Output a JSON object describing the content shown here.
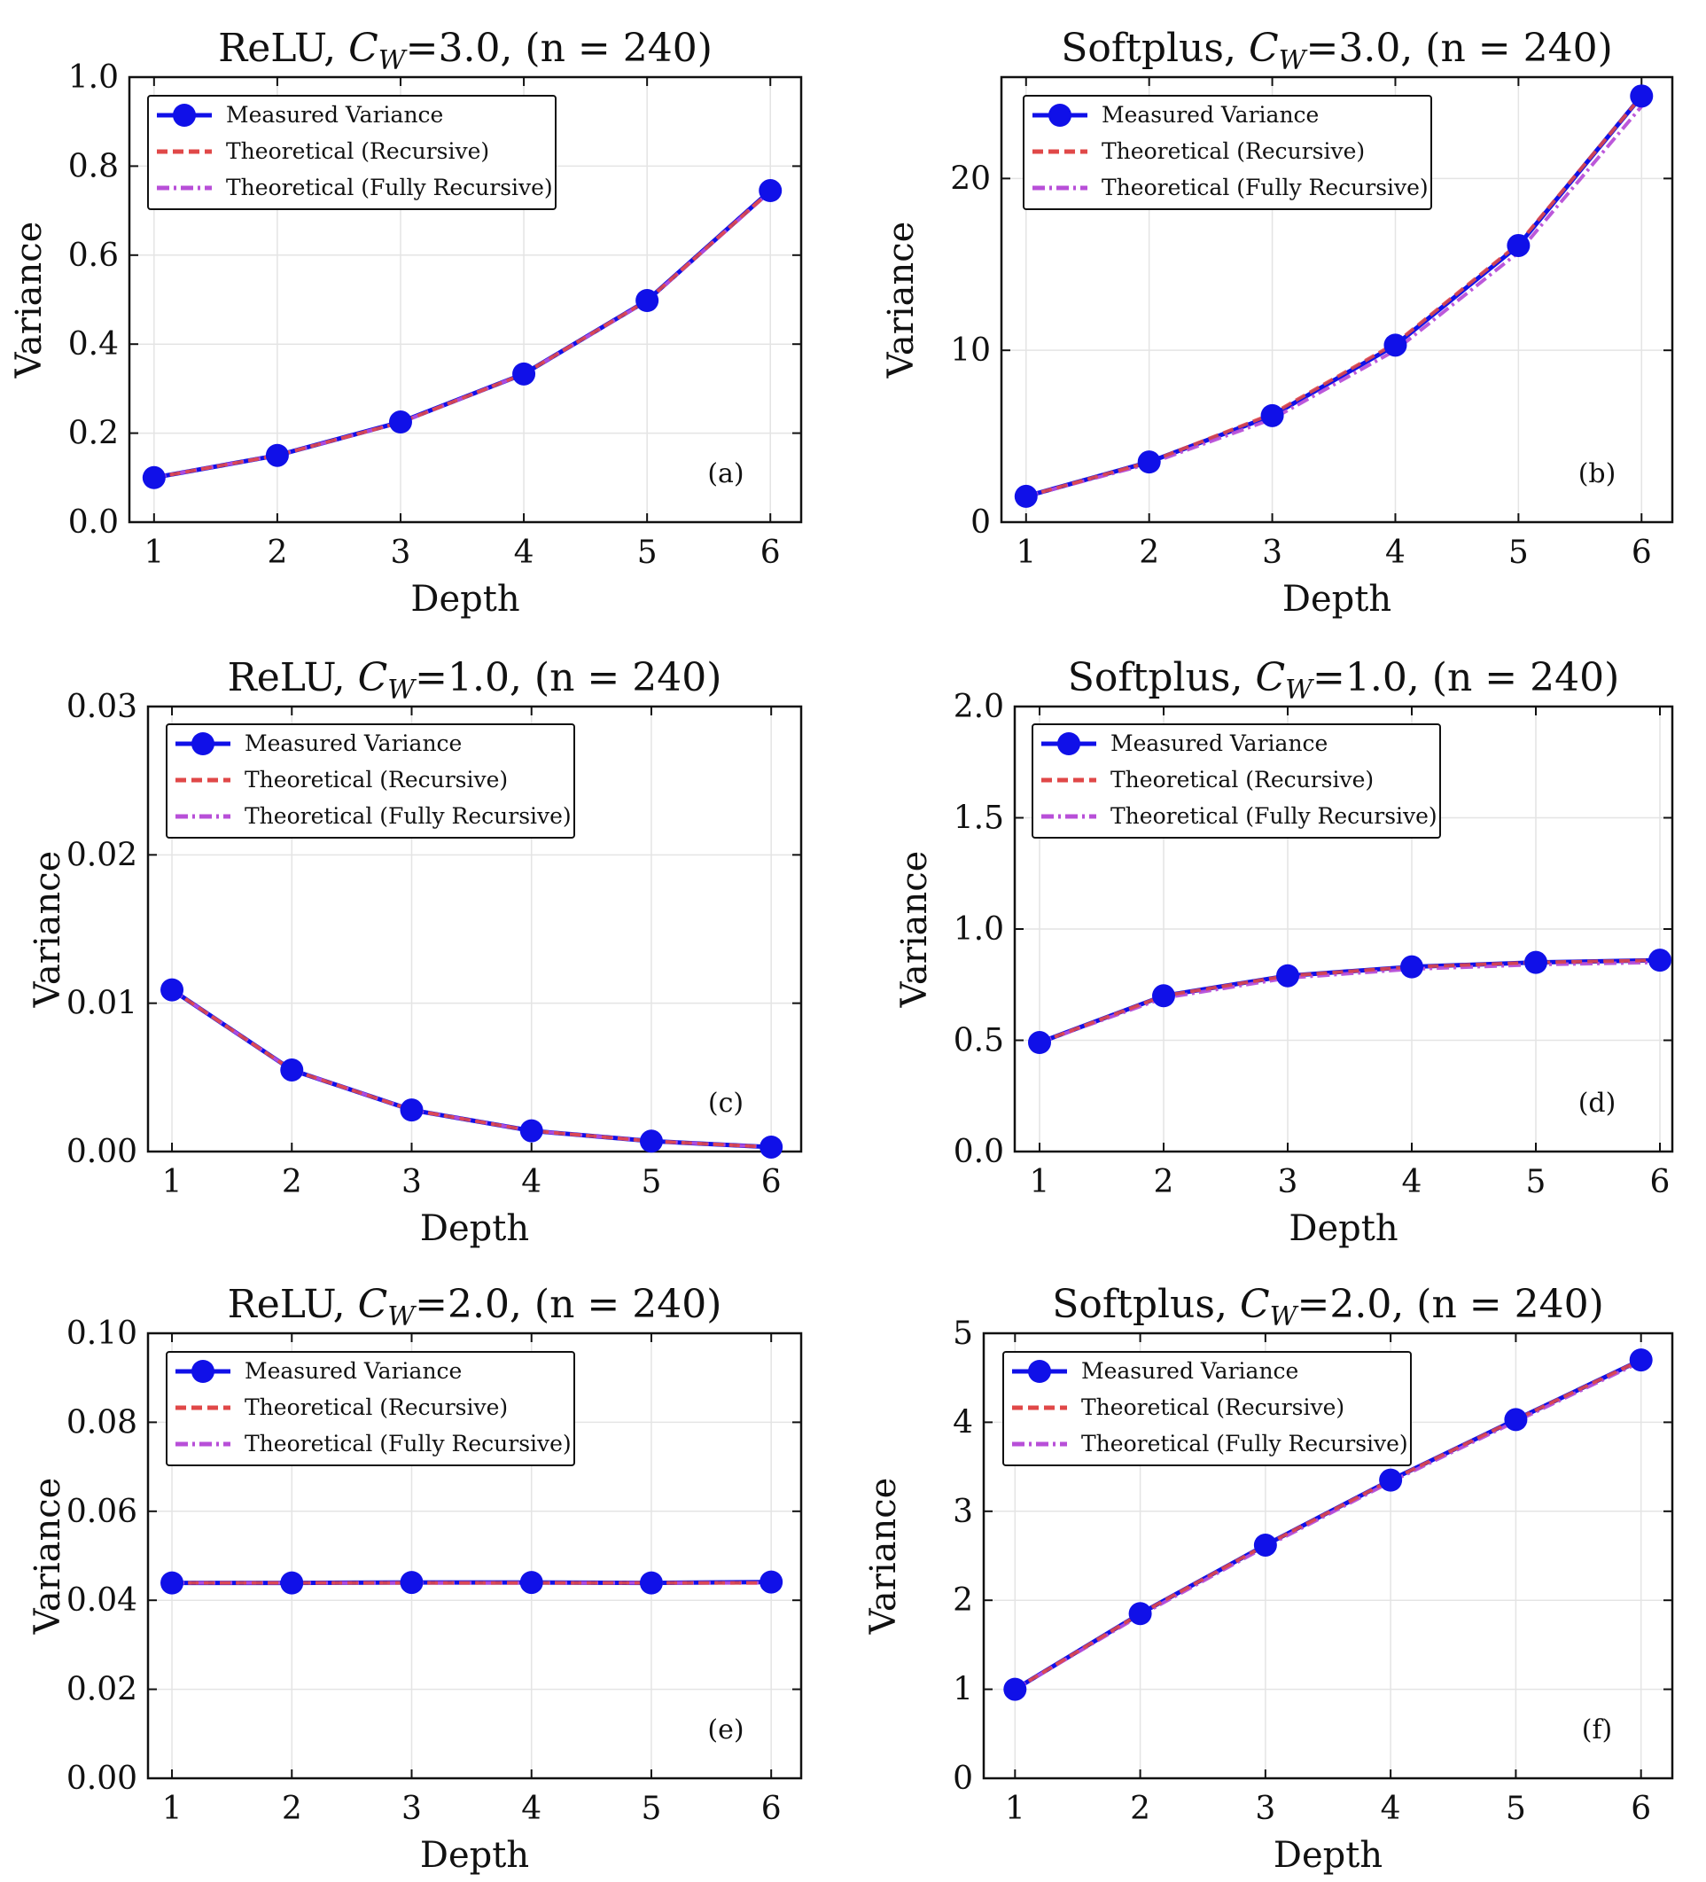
{
  "legend": {
    "measured": "Measured Variance",
    "recursive": "Theoretical (Recursive)",
    "fully": "Theoretical (Fully Recursive)"
  },
  "colors": {
    "measured": "#1010e8",
    "recursive": "#e04848",
    "fully": "#b84fd8",
    "grid": "#e4e4e4",
    "frame": "#111111"
  },
  "chart_data": [
    {
      "type": "line",
      "title": "ReLU, C_W=3.0, (n = 240)",
      "title_parts": {
        "pre": "ReLU, ",
        "sym": "C",
        "sub": "W",
        "post": "=3.0, (n = 240)"
      },
      "xlabel": "Depth",
      "ylabel": "Variance",
      "panel": "(a)",
      "x": [
        1,
        2,
        3,
        4,
        5,
        6
      ],
      "xlim": [
        0.8,
        6.25
      ],
      "ylim": [
        0,
        1.0
      ],
      "yticks": [
        "0.0",
        "0.2",
        "0.4",
        "0.6",
        "0.8",
        "1.0"
      ],
      "series": [
        {
          "name": "Measured Variance",
          "values": [
            0.1,
            0.15,
            0.225,
            0.333,
            0.498,
            0.745
          ]
        },
        {
          "name": "Theoretical (Recursive)",
          "values": [
            0.1,
            0.15,
            0.224,
            0.333,
            0.498,
            0.744
          ]
        },
        {
          "name": "Theoretical (Fully Recursive)",
          "values": [
            0.1,
            0.15,
            0.224,
            0.333,
            0.497,
            0.743
          ]
        }
      ]
    },
    {
      "type": "line",
      "title": "Softplus, C_W=3.0, (n = 240)",
      "title_parts": {
        "pre": "Softplus, ",
        "sym": "C",
        "sub": "W",
        "post": "=3.0, (n = 240)"
      },
      "xlabel": "Depth",
      "ylabel": "Variance",
      "panel": "(b)",
      "x": [
        1,
        2,
        3,
        4,
        5,
        6
      ],
      "xlim": [
        0.8,
        6.25
      ],
      "ylim": [
        0,
        25.9
      ],
      "yticks": [
        "0",
        "10",
        "20"
      ],
      "series": [
        {
          "name": "Measured Variance",
          "values": [
            1.5,
            3.5,
            6.2,
            10.3,
            16.1,
            24.8
          ]
        },
        {
          "name": "Theoretical (Recursive)",
          "values": [
            1.5,
            3.5,
            6.3,
            10.4,
            16.2,
            24.8
          ]
        },
        {
          "name": "Theoretical (Fully Recursive)",
          "values": [
            1.5,
            3.4,
            6.0,
            10.0,
            15.7,
            24.2
          ]
        }
      ]
    },
    {
      "type": "line",
      "title": "ReLU, C_W=1.0, (n = 240)",
      "title_parts": {
        "pre": "ReLU, ",
        "sym": "C",
        "sub": "W",
        "post": "=1.0, (n = 240)"
      },
      "xlabel": "Depth",
      "ylabel": "Variance",
      "panel": "(c)",
      "x": [
        1,
        2,
        3,
        4,
        5,
        6
      ],
      "xlim": [
        0.8,
        6.25
      ],
      "ylim": [
        0,
        0.03
      ],
      "yticks": [
        "0.00",
        "0.01",
        "0.02",
        "0.03"
      ],
      "series": [
        {
          "name": "Measured Variance",
          "values": [
            0.0109,
            0.0055,
            0.0028,
            0.0014,
            0.0007,
            0.0003
          ]
        },
        {
          "name": "Theoretical (Recursive)",
          "values": [
            0.0109,
            0.0055,
            0.0028,
            0.0014,
            0.0007,
            0.0003
          ]
        },
        {
          "name": "Theoretical (Fully Recursive)",
          "values": [
            0.0109,
            0.0055,
            0.0028,
            0.0014,
            0.0007,
            0.0003
          ]
        }
      ]
    },
    {
      "type": "line",
      "title": "Softplus, C_W=1.0, (n = 240)",
      "title_parts": {
        "pre": "Softplus, ",
        "sym": "C",
        "sub": "W",
        "post": "=1.0, (n = 240)"
      },
      "xlabel": "Depth",
      "ylabel": "Variance",
      "panel": "(d)",
      "x": [
        1,
        2,
        3,
        4,
        5,
        6
      ],
      "xlim": [
        0.8,
        6.1
      ],
      "ylim": [
        0,
        2.0
      ],
      "yticks": [
        "0.0",
        "0.5",
        "1.0",
        "1.5",
        "2.0"
      ],
      "series": [
        {
          "name": "Measured Variance",
          "values": [
            0.49,
            0.7,
            0.79,
            0.83,
            0.85,
            0.86
          ]
        },
        {
          "name": "Theoretical (Recursive)",
          "values": [
            0.49,
            0.7,
            0.79,
            0.83,
            0.85,
            0.86
          ]
        },
        {
          "name": "Theoretical (Fully Recursive)",
          "values": [
            0.49,
            0.69,
            0.78,
            0.82,
            0.84,
            0.85
          ]
        }
      ]
    },
    {
      "type": "line",
      "title": "ReLU, C_W=2.0, (n = 240)",
      "title_parts": {
        "pre": "ReLU, ",
        "sym": "C",
        "sub": "W",
        "post": "=2.0, (n = 240)"
      },
      "xlabel": "Depth",
      "ylabel": "Variance",
      "panel": "(e)",
      "x": [
        1,
        2,
        3,
        4,
        5,
        6
      ],
      "xlim": [
        0.8,
        6.25
      ],
      "ylim": [
        0,
        0.1
      ],
      "yticks": [
        "0.00",
        "0.02",
        "0.04",
        "0.06",
        "0.08",
        "0.10"
      ],
      "series": [
        {
          "name": "Measured Variance",
          "values": [
            0.0439,
            0.0439,
            0.044,
            0.044,
            0.0439,
            0.0441
          ]
        },
        {
          "name": "Theoretical (Recursive)",
          "values": [
            0.0439,
            0.0439,
            0.0439,
            0.0439,
            0.0439,
            0.0439
          ]
        },
        {
          "name": "Theoretical (Fully Recursive)",
          "values": [
            0.0439,
            0.0439,
            0.0439,
            0.0439,
            0.0439,
            0.0439
          ]
        }
      ]
    },
    {
      "type": "line",
      "title": "Softplus, C_W=2.0, (n = 240)",
      "title_parts": {
        "pre": "Softplus, ",
        "sym": "C",
        "sub": "W",
        "post": "=2.0, (n = 240)"
      },
      "xlabel": "Depth",
      "ylabel": "Variance",
      "panel": "(f)",
      "x": [
        1,
        2,
        3,
        4,
        5,
        6
      ],
      "xlim": [
        0.75,
        6.25
      ],
      "ylim": [
        0,
        5
      ],
      "yticks": [
        "0",
        "1",
        "2",
        "3",
        "4",
        "5"
      ],
      "series": [
        {
          "name": "Measured Variance",
          "values": [
            1.0,
            1.85,
            2.62,
            3.35,
            4.03,
            4.7
          ]
        },
        {
          "name": "Theoretical (Recursive)",
          "values": [
            1.0,
            1.85,
            2.62,
            3.35,
            4.03,
            4.7
          ]
        },
        {
          "name": "Theoretical (Fully Recursive)",
          "values": [
            1.0,
            1.83,
            2.6,
            3.33,
            4.01,
            4.68
          ]
        }
      ]
    }
  ]
}
